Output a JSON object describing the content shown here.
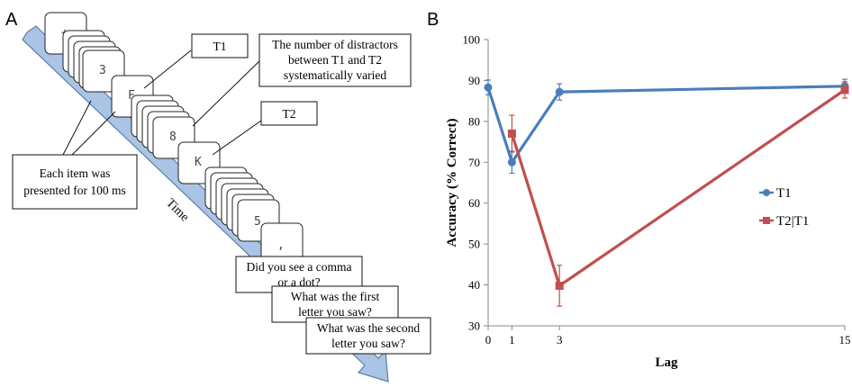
{
  "panel_a": {
    "label": "A",
    "time_label": "Time",
    "card_symbols": [
      "+",
      "3",
      "F",
      "8",
      "K",
      "5",
      ","
    ],
    "callouts": {
      "t1": "T1",
      "t2": "T2",
      "distractors": [
        "The number of distractors",
        "between T1 and T2",
        "systematically varied"
      ],
      "duration": [
        "Each item was",
        "presented for 100 ms"
      ]
    },
    "questions": [
      [
        "Did you see a comma",
        "or a dot?"
      ],
      [
        "What was the first",
        "letter you saw?"
      ],
      [
        "What was the second",
        "letter you saw?"
      ]
    ],
    "colors": {
      "arrow_fill": "#a9c4e4",
      "arrow_stroke": "#5a7fa8"
    }
  },
  "panel_b": {
    "label": "B",
    "chart_data": {
      "type": "line",
      "title": "",
      "xlabel": "Lag",
      "ylabel": "Accuracy (% Correct)",
      "xlim": [
        0,
        15
      ],
      "ylim": [
        30,
        100
      ],
      "xticks": [
        0,
        1,
        3,
        15
      ],
      "yticks": [
        30,
        40,
        50,
        60,
        70,
        80,
        90,
        100
      ],
      "grid": false,
      "legend_position": "right",
      "series": [
        {
          "name": "T1",
          "color": "#4a7ebb",
          "marker": "circle",
          "x": [
            0,
            1,
            3,
            15
          ],
          "y": [
            88.3,
            70.0,
            87.2,
            88.6
          ],
          "error": [
            1.8,
            2.7,
            2.0,
            1.7
          ]
        },
        {
          "name": "T2|T1",
          "color": "#c0504d",
          "marker": "square",
          "x": [
            1,
            3,
            15
          ],
          "y": [
            77.0,
            39.8,
            87.7
          ],
          "error": [
            4.5,
            5.0,
            2.0
          ]
        }
      ]
    }
  }
}
